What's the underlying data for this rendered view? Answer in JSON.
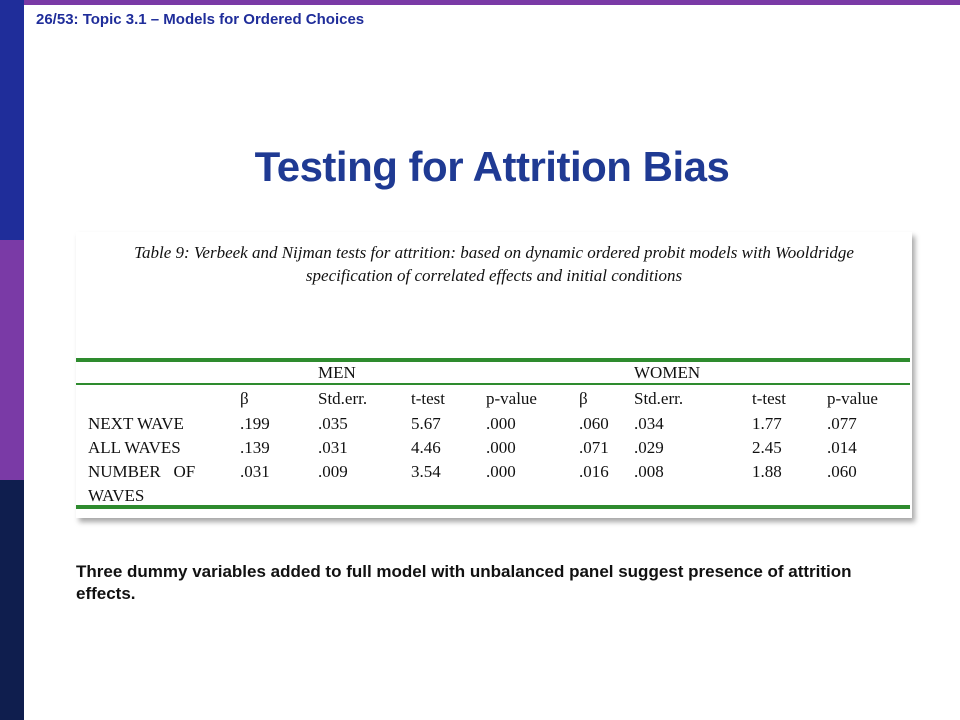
{
  "header": {
    "title": "26/53: Topic 3.1 – Models for Ordered Choices"
  },
  "slide": {
    "title": "Testing for Attrition Bias",
    "body": "Three dummy variables added to full model with unbalanced panel suggest presence of attrition effects."
  },
  "table": {
    "caption_line1": "Table 9: Verbeek and Nijman  tests for attrition: based on dynamic  ordered probit models with Wooldridge",
    "caption_line2": "specification of correlated effects and initial conditions",
    "group_headers": [
      "MEN",
      "WOMEN"
    ],
    "columns": [
      "β",
      "Std.err.",
      "t-test",
      "p-value",
      "β",
      "Std.err.",
      "t-test",
      "p-value"
    ],
    "rows": [
      {
        "label": "NEXT WAVE",
        "values": [
          ".199",
          ".035",
          "5.67",
          ".000",
          ".060",
          ".034",
          "1.77",
          ".077"
        ]
      },
      {
        "label": "ALL WAVES",
        "values": [
          ".139",
          ".031",
          "4.46",
          ".000",
          ".071",
          ".029",
          "2.45",
          ".014"
        ]
      },
      {
        "label": "NUMBER   OF",
        "label_line2": "WAVES",
        "values": [
          ".031",
          ".009",
          "3.54",
          ".000",
          ".016",
          ".008",
          "1.88",
          ".060"
        ]
      }
    ]
  }
}
